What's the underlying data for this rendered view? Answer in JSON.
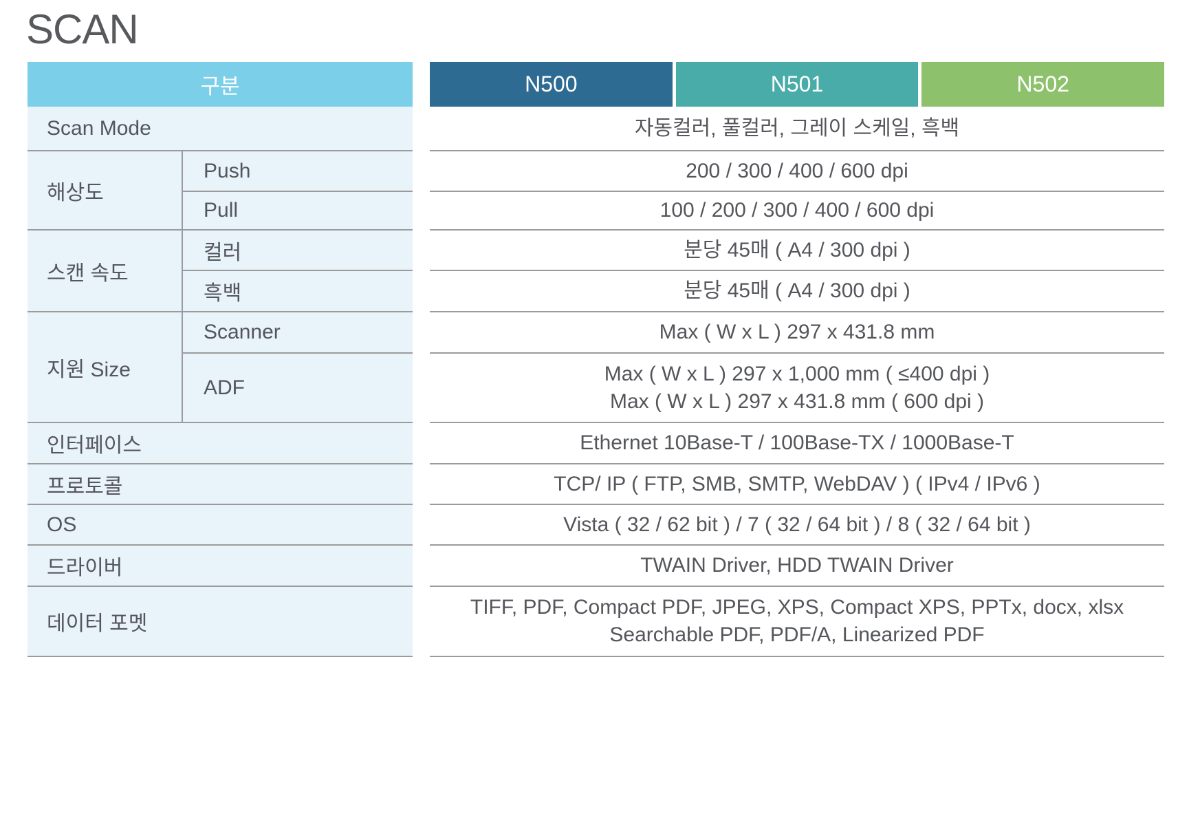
{
  "title": "SCAN",
  "colors": {
    "category_header_bg": "#7CCFE8",
    "left_row_bg": "#E9F3FA",
    "divider": "#9B9B9B",
    "text": "#54565B"
  },
  "table": {
    "category_header": "구분",
    "models": [
      {
        "name": "N500",
        "color": "#2E6B92"
      },
      {
        "name": "N501",
        "color": "#49ACA9"
      },
      {
        "name": "N502",
        "color": "#8EC16C"
      }
    ],
    "rows": {
      "scan_mode": {
        "label": "Scan Mode",
        "value": "자동컬러, 풀컬러, 그레이 스케일, 흑백"
      },
      "resolution": {
        "label": "해상도",
        "push": {
          "label": "Push",
          "value": "200 / 300 / 400 / 600 dpi"
        },
        "pull": {
          "label": "Pull",
          "value": "100 / 200 / 300 / 400 / 600 dpi"
        }
      },
      "scan_speed": {
        "label": "스캔 속도",
        "color": {
          "label": "컬러",
          "value": "분당 45매 ( A4 / 300 dpi )"
        },
        "mono": {
          "label": "흑백",
          "value": "분당 45매 ( A4 / 300 dpi )"
        }
      },
      "supported_size": {
        "label": "지원 Size",
        "scanner": {
          "label": "Scanner",
          "value": "Max ( W x L ) 297 x 431.8 mm"
        },
        "adf": {
          "label": "ADF",
          "value_line1": "Max ( W x L ) 297 x 1,000 mm ( ≤400 dpi )",
          "value_line2": "Max ( W x L ) 297 x 431.8 mm ( 600 dpi )"
        }
      },
      "interface": {
        "label": "인터페이스",
        "value": "Ethernet 10Base-T / 100Base-TX / 1000Base-T"
      },
      "protocol": {
        "label": "프로토콜",
        "value": "TCP/ IP ( FTP, SMB, SMTP, WebDAV ) ( IPv4 / IPv6 )"
      },
      "os": {
        "label": "OS",
        "value": "Vista ( 32 / 62 bit ) / 7 ( 32 / 64 bit ) / 8 ( 32 / 64 bit )"
      },
      "driver": {
        "label": "드라이버",
        "value": "TWAIN Driver, HDD TWAIN Driver"
      },
      "data_format": {
        "label": "데이터 포멧",
        "value_line1": "TIFF, PDF, Compact PDF, JPEG, XPS, Compact XPS, PPTx, docx, xlsx",
        "value_line2": "Searchable PDF, PDF/A, Linearized PDF"
      }
    }
  }
}
